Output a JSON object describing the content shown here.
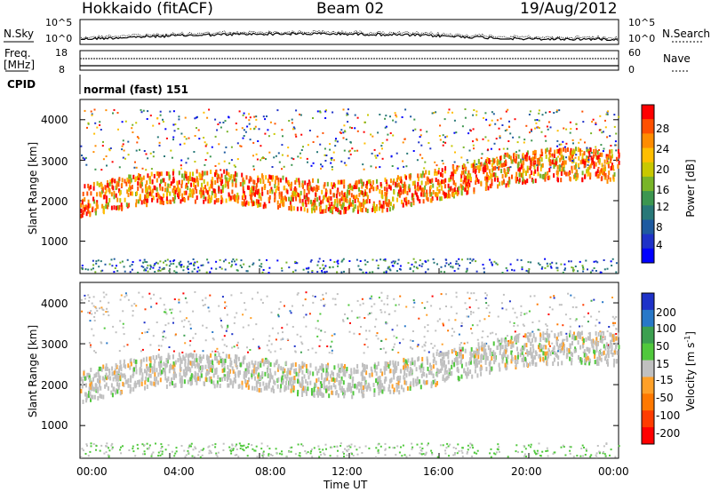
{
  "header": {
    "station": "Hokkaido (fitACF)",
    "beam": "Beam 02",
    "date": "19/Aug/2012"
  },
  "colors": {
    "scatter_gray": "#c0c0c0"
  },
  "noise_panel": {
    "left_label": "N.Sky",
    "right_label": "N.Search",
    "y_ticks_left": [
      "10^5",
      "10^0"
    ],
    "y_ticks_right": [
      "10^5",
      "10^0"
    ]
  },
  "freq_panel": {
    "left_label_top": "Freq.",
    "left_label_units": "[MHz]",
    "right_label": "Nave",
    "y_ticks_left": [
      "18",
      "8"
    ],
    "y_ticks_right": [
      "60",
      "0"
    ]
  },
  "cpid_panel": {
    "label": "CPID",
    "mode_text": "normal (fast) 151"
  },
  "chart_data": [
    {
      "type": "heatmap",
      "name": "power",
      "ylabel": "Slant Range [km]",
      "y_ticks": [
        "1000",
        "2000",
        "3000",
        "4000"
      ],
      "ylim": [
        200,
        4500
      ],
      "colorbar": {
        "label": "Power [dB]",
        "ticks": [
          "28",
          "24",
          "20",
          "16",
          "12",
          "8",
          "4"
        ],
        "colors": [
          "#ff0000",
          "#ff5000",
          "#ff8c00",
          "#ffbe00",
          "#c8c800",
          "#78b428",
          "#3c9650",
          "#287878",
          "#1e5aa0",
          "#1e32c8",
          "#0000ff"
        ]
      }
    },
    {
      "type": "heatmap",
      "name": "velocity",
      "ylabel": "Slant Range [km]",
      "y_ticks": [
        "1000",
        "2000",
        "3000",
        "4000"
      ],
      "ylim": [
        200,
        4500
      ],
      "colorbar": {
        "label": "Velocity [m s",
        "label_sup": "-1",
        "label_end": "]",
        "ticks": [
          "200",
          "100",
          "50",
          "15",
          "-15",
          "-50",
          "-100",
          "-200"
        ],
        "colors": [
          "#1e32c8",
          "#2878c8",
          "#3ca050",
          "#50c83c",
          "#c0c0c0",
          "#ffa028",
          "#ff7800",
          "#ff3c00",
          "#ff0000"
        ]
      }
    }
  ],
  "x_axis": {
    "ticks": [
      "00:00",
      "04:00",
      "08:00",
      "12:00",
      "16:00",
      "20:00",
      "00:00"
    ],
    "label": "Time UT"
  }
}
